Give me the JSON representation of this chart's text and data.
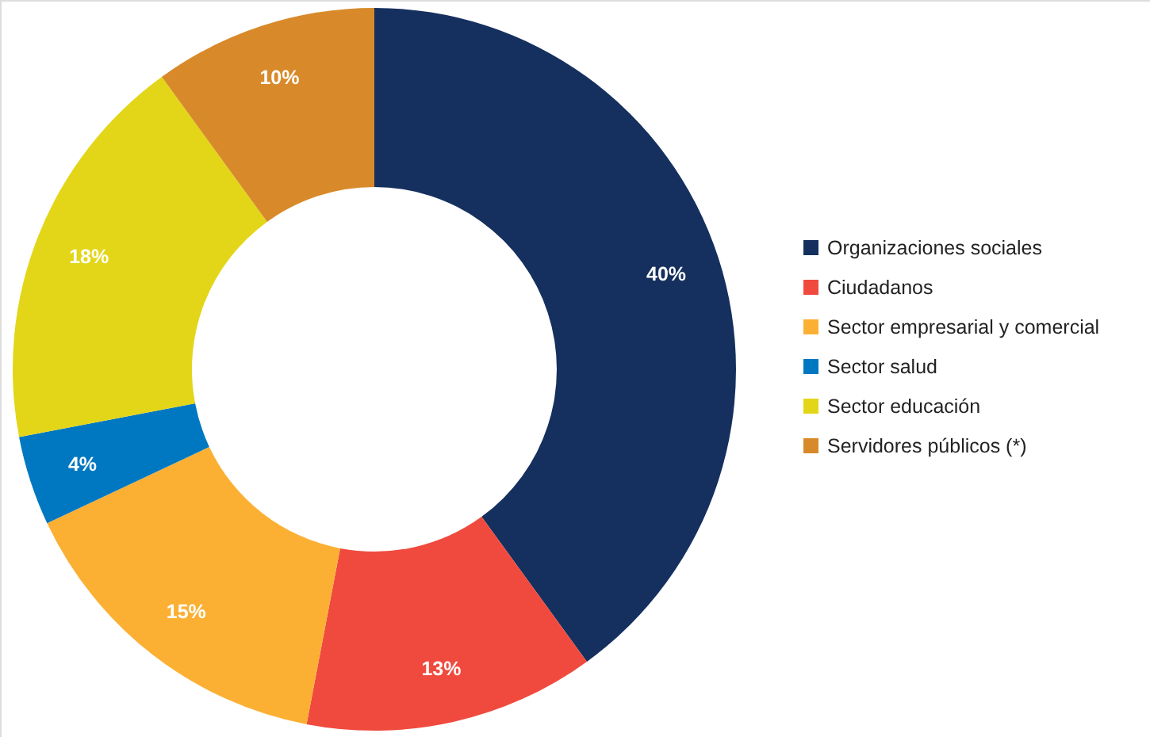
{
  "chart_data": {
    "type": "donut",
    "categories": [
      "Organizaciones sociales",
      "Ciudadanos",
      "Sector empresarial y comercial",
      "Sector salud",
      "Sector educación",
      "Servidores públicos (*)"
    ],
    "values": [
      40,
      13,
      15,
      4,
      18,
      10
    ],
    "colors": [
      "#15305e",
      "#f04a3e",
      "#fbb034",
      "#0078c1",
      "#e3d618",
      "#d88a2a"
    ],
    "value_labels": [
      "40%",
      "13%",
      "15%",
      "4%",
      "18%",
      "10%"
    ],
    "legend": "right"
  }
}
